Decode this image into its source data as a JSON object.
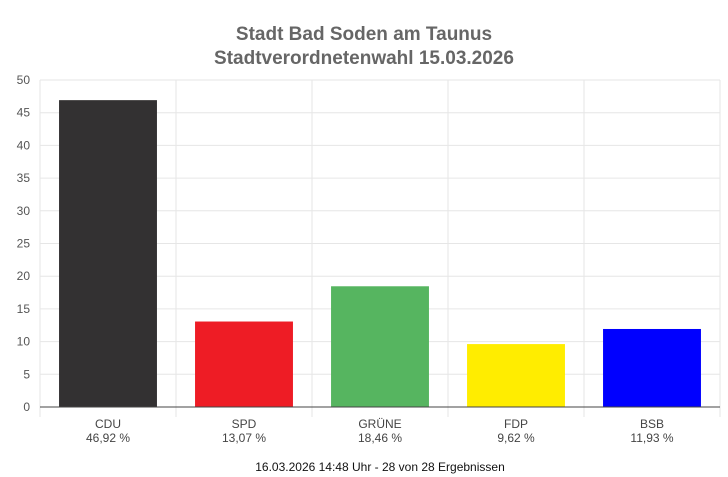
{
  "chart_data": {
    "type": "bar",
    "title": "Stadt Bad Soden am Taunus",
    "subtitle": "Stadtverordnetenwahl 15.03.2026",
    "categories": [
      "CDU",
      "SPD",
      "GRÜNE",
      "FDP",
      "BSB"
    ],
    "values": [
      46.92,
      13.07,
      18.46,
      9.62,
      11.93
    ],
    "value_labels": [
      "46,92 %",
      "13,07 %",
      "18,46 %",
      "9,62 %",
      "11,93 %"
    ],
    "colors": [
      "#333132",
      "#ee1c25",
      "#56b560",
      "#ffed00",
      "#0000ff"
    ],
    "ylim": [
      0,
      50
    ],
    "yticks": [
      0,
      5,
      10,
      15,
      20,
      25,
      30,
      35,
      40,
      45,
      50
    ],
    "ytick_labels": [
      "0",
      "5",
      "10",
      "15",
      "20",
      "25",
      "30",
      "35",
      "40",
      "45",
      "50"
    ],
    "grid": true,
    "xlabel": "",
    "ylabel": ""
  },
  "footer": "16.03.2026 14:48 Uhr - 28 von 28 Ergebnissen"
}
